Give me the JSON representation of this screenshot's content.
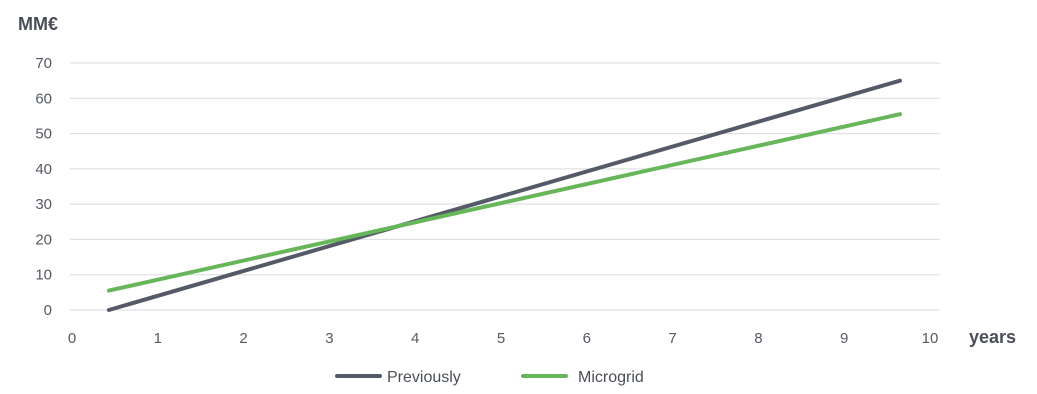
{
  "chart_data": {
    "type": "line",
    "ylabel": "MM€",
    "xlabel": "years",
    "xlim": [
      0,
      10
    ],
    "ylim": [
      0,
      70
    ],
    "xticks": [
      0,
      1,
      2,
      3,
      4,
      5,
      6,
      7,
      8,
      9,
      10
    ],
    "yticks": [
      0,
      10,
      20,
      30,
      40,
      50,
      60,
      70
    ],
    "grid": "horizontal",
    "legend_position": "bottom-center",
    "series": [
      {
        "name": "Previously",
        "color": "#545b67",
        "x": [
          0.43,
          9.65
        ],
        "y": [
          0,
          65
        ]
      },
      {
        "name": "Microgrid",
        "color": "#67b65a",
        "x": [
          0.43,
          9.65
        ],
        "y": [
          5.5,
          55.5
        ]
      }
    ]
  }
}
